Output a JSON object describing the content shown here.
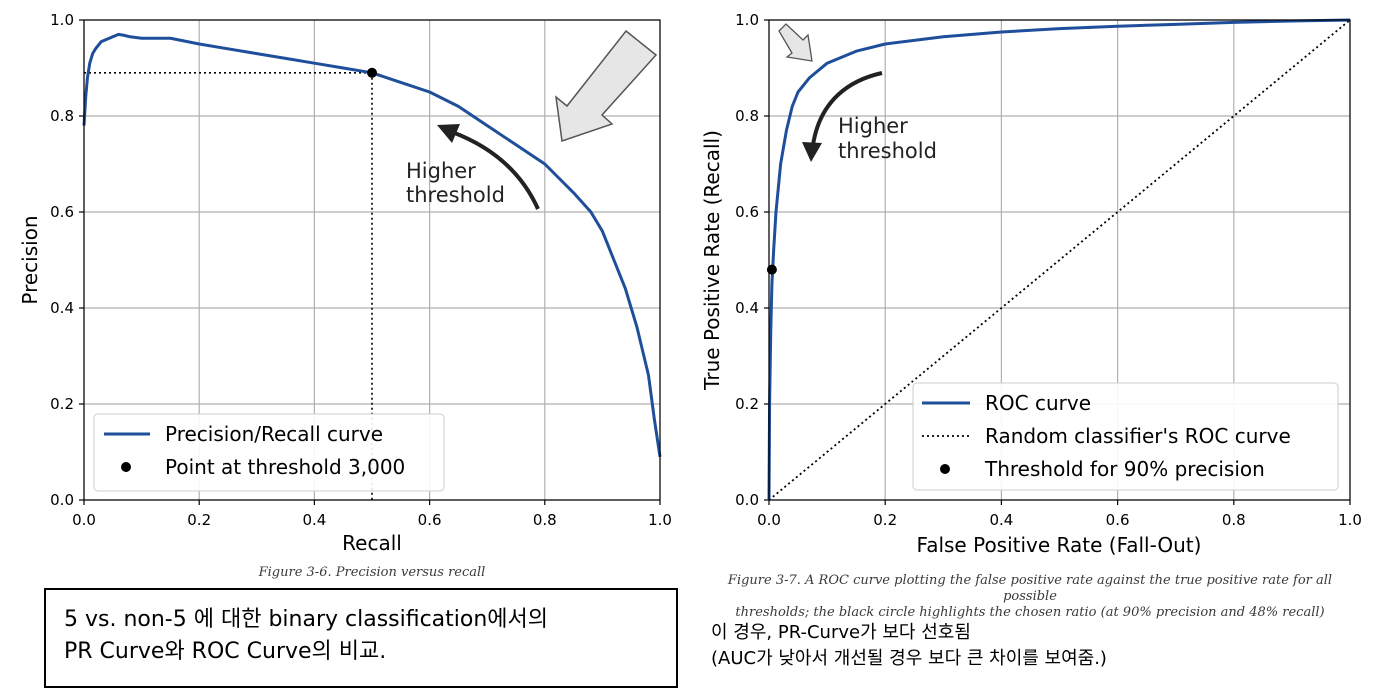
{
  "chart_data": [
    {
      "type": "line",
      "xlabel": "Recall",
      "ylabel": "Precision",
      "xlim": [
        0,
        1
      ],
      "ylim": [
        0,
        1
      ],
      "grid": true,
      "xticks": [
        "0.0",
        "0.2",
        "0.4",
        "0.6",
        "0.8",
        "1.0"
      ],
      "yticks": [
        "0.0",
        "0.2",
        "0.4",
        "0.6",
        "0.8",
        "1.0"
      ],
      "series": [
        {
          "name": "Precision/Recall curve",
          "color": "#1f4e9a",
          "x": [
            0.0,
            0.003,
            0.006,
            0.01,
            0.015,
            0.02,
            0.03,
            0.05,
            0.06,
            0.07,
            0.08,
            0.1,
            0.15,
            0.2,
            0.25,
            0.3,
            0.35,
            0.4,
            0.45,
            0.5,
            0.55,
            0.6,
            0.65,
            0.7,
            0.75,
            0.8,
            0.85,
            0.88,
            0.9,
            0.92,
            0.94,
            0.96,
            0.98,
            0.99,
            1.0
          ],
          "y": [
            0.78,
            0.84,
            0.88,
            0.91,
            0.93,
            0.94,
            0.955,
            0.965,
            0.97,
            0.968,
            0.965,
            0.962,
            0.962,
            0.95,
            0.94,
            0.93,
            0.92,
            0.91,
            0.9,
            0.89,
            0.87,
            0.85,
            0.82,
            0.78,
            0.74,
            0.7,
            0.64,
            0.6,
            0.56,
            0.5,
            0.44,
            0.36,
            0.26,
            0.17,
            0.09
          ]
        }
      ],
      "points": [
        {
          "name": "Point at threshold 3,000",
          "x": 0.5,
          "y": 0.89
        }
      ],
      "annotation": {
        "line1": "Higher",
        "line2": "threshold"
      },
      "legend": "lower-left",
      "caption": "Figure 3-6. Precision versus recall"
    },
    {
      "type": "line",
      "xlabel": "False Positive Rate (Fall-Out)",
      "ylabel": "True Positive Rate (Recall)",
      "xlim": [
        0,
        1
      ],
      "ylim": [
        0,
        1
      ],
      "grid": true,
      "xticks": [
        "0.0",
        "0.2",
        "0.4",
        "0.6",
        "0.8",
        "1.0"
      ],
      "yticks": [
        "0.0",
        "0.2",
        "0.4",
        "0.6",
        "0.8",
        "1.0"
      ],
      "series": [
        {
          "name": "ROC curve",
          "color": "#1f4e9a",
          "x": [
            0.0,
            0.001,
            0.003,
            0.005,
            0.008,
            0.012,
            0.02,
            0.03,
            0.04,
            0.05,
            0.07,
            0.1,
            0.15,
            0.2,
            0.3,
            0.4,
            0.5,
            0.6,
            0.7,
            0.8,
            0.9,
            1.0
          ],
          "y": [
            0.0,
            0.2,
            0.35,
            0.45,
            0.52,
            0.6,
            0.7,
            0.77,
            0.82,
            0.85,
            0.88,
            0.91,
            0.935,
            0.95,
            0.965,
            0.975,
            0.982,
            0.987,
            0.991,
            0.995,
            0.998,
            1.0
          ]
        },
        {
          "name": "Random classifier's ROC curve",
          "color": "#000000",
          "x": [
            0,
            1
          ],
          "y": [
            0,
            1
          ]
        }
      ],
      "points": [
        {
          "name": "Threshold for 90% precision",
          "x": 0.005,
          "y": 0.48
        }
      ],
      "annotation": {
        "line1": "Higher",
        "line2": "threshold"
      },
      "legend": "lower-right",
      "caption_line1": "Figure 3-7. A ROC curve plotting the false positive rate against the true positive rate for all possible",
      "caption_line2": "thresholds; the black circle highlights the chosen ratio (at 90% precision and 48% recall)"
    }
  ],
  "notes": {
    "left_line1": "5 vs. non-5 에 대한 binary classification에서의",
    "left_line2": "PR Curve와 ROC Curve의 비교.",
    "right_line1": "이 경우, PR-Curve가 보다 선호됨",
    "right_line2": "(AUC가 낮아서 개선될 경우 보다 큰 차이를 보여줌.)"
  }
}
